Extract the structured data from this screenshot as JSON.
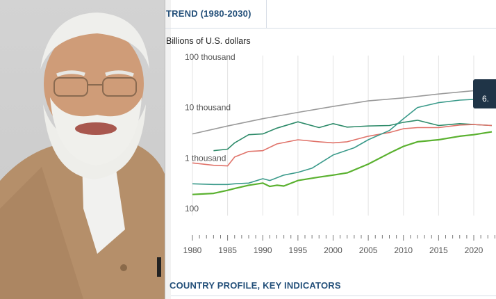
{
  "header": {
    "title": "TREND (1980-2030)"
  },
  "section": {
    "title": "COUNTRY PROFILE, KEY INDICATORS"
  },
  "tooltip": {
    "value": "6."
  },
  "chart_data": {
    "type": "line",
    "ylabel": "Billions of U.S. dollars",
    "xlabel": "",
    "y_scale": "log",
    "ylim": [
      100,
      100000
    ],
    "xlim": [
      1980,
      2023
    ],
    "y_ticks": [
      {
        "value": 100000,
        "label": "100 thousand"
      },
      {
        "value": 10000,
        "label": "10 thousand"
      },
      {
        "value": 1000,
        "label": "1 thousand"
      },
      {
        "value": 100,
        "label": "100"
      }
    ],
    "x_ticks": [
      1980,
      1985,
      1990,
      1995,
      2000,
      2005,
      2010,
      2015,
      2020
    ],
    "grid": "vertical",
    "series": [
      {
        "color": "#9a9a9a",
        "x": [
          1980,
          1985,
          1990,
          1995,
          2000,
          2005,
          2010,
          2015,
          2020,
          2023
        ],
        "values": [
          3000,
          4300,
          6000,
          8000,
          10500,
          13500,
          15500,
          18500,
          21500,
          22000
        ]
      },
      {
        "color": "#2e8b6a",
        "x": [
          1983,
          1985,
          1986,
          1988,
          1990,
          1992,
          1995,
          1998,
          2000,
          2002,
          2005,
          2008,
          2010,
          2012,
          2015,
          2018,
          2020,
          2023
        ],
        "values": [
          1400,
          1500,
          2000,
          2900,
          3000,
          3900,
          5200,
          4000,
          4800,
          4100,
          4300,
          4400,
          5100,
          5600,
          4400,
          4800,
          4600,
          4400
        ]
      },
      {
        "color": "#e0736a",
        "x": [
          1980,
          1983,
          1985,
          1986,
          1988,
          1990,
          1992,
          1995,
          1998,
          2000,
          2002,
          2005,
          2008,
          2010,
          2012,
          2015,
          2018,
          2020,
          2023
        ],
        "values": [
          800,
          720,
          700,
          1050,
          1350,
          1400,
          1900,
          2300,
          2100,
          2000,
          2100,
          2700,
          3200,
          3800,
          4000,
          4000,
          4500,
          4600,
          4400
        ]
      },
      {
        "color": "#3a9a8a",
        "x": [
          1980,
          1983,
          1985,
          1986,
          1988,
          1990,
          1991,
          1993,
          1995,
          1997,
          2000,
          2003,
          2005,
          2008,
          2010,
          2012,
          2015,
          2018,
          2020,
          2023
        ],
        "values": [
          310,
          300,
          300,
          310,
          320,
          390,
          360,
          460,
          520,
          630,
          1150,
          1600,
          2300,
          3500,
          6000,
          10000,
          12500,
          14000,
          14500,
          15000
        ]
      },
      {
        "color": "#5ab12f",
        "x": [
          1980,
          1983,
          1985,
          1986,
          1988,
          1990,
          1991,
          1992,
          1993,
          1995,
          1998,
          2000,
          2002,
          2005,
          2008,
          2010,
          2012,
          2015,
          2018,
          2020,
          2023
        ],
        "values": [
          190,
          200,
          230,
          250,
          290,
          320,
          275,
          290,
          280,
          360,
          420,
          460,
          510,
          760,
          1250,
          1700,
          2100,
          2300,
          2700,
          2900,
          3300
        ]
      }
    ]
  }
}
